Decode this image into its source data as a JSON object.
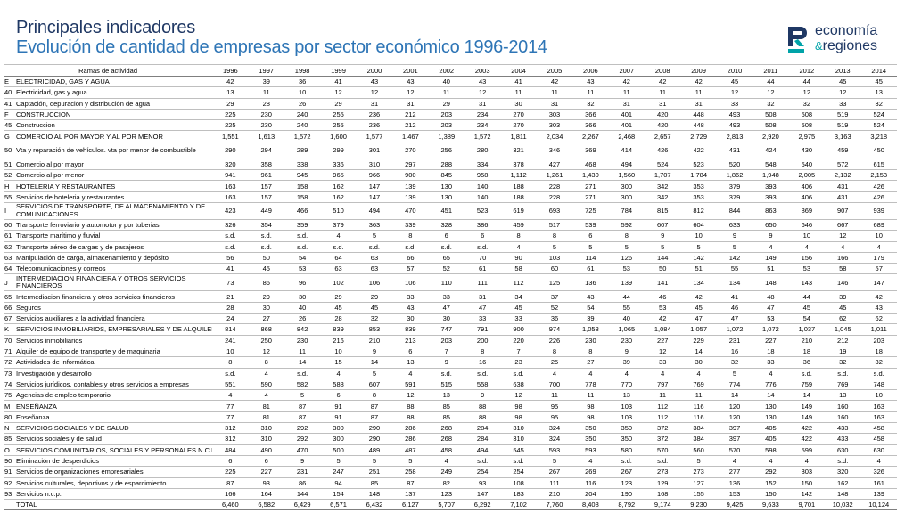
{
  "title": "Principales indicadores",
  "subtitle": "Evolución de cantidad de empresas por sector económico 1996-2014",
  "logo": {
    "line1": "economía",
    "amp": "&",
    "line2": "regiones",
    "accent_color": "#00a3a8",
    "brand_color": "#1f3864"
  },
  "table": {
    "header_label": "Ramas de actividad",
    "years": [
      "1996",
      "1997",
      "1998",
      "1999",
      "2000",
      "2001",
      "2002",
      "2003",
      "2004",
      "2005",
      "2006",
      "2007",
      "2008",
      "2009",
      "2010",
      "2011",
      "2012",
      "2013",
      "2014"
    ],
    "rows": [
      {
        "code": "E",
        "name": "ELECTRICIDAD, GAS Y AGUA",
        "values": [
          "42",
          "39",
          "36",
          "41",
          "43",
          "43",
          "40",
          "43",
          "41",
          "42",
          "43",
          "42",
          "42",
          "42",
          "45",
          "44",
          "44",
          "45",
          "45"
        ]
      },
      {
        "code": "40",
        "name": "Electricidad, gas y agua",
        "values": [
          "13",
          "11",
          "10",
          "12",
          "12",
          "12",
          "11",
          "12",
          "11",
          "11",
          "11",
          "11",
          "11",
          "11",
          "12",
          "12",
          "12",
          "12",
          "13"
        ]
      },
      {
        "code": "41",
        "name": "Captación, depuración y distribución de agua",
        "values": [
          "29",
          "28",
          "26",
          "29",
          "31",
          "31",
          "29",
          "31",
          "30",
          "31",
          "32",
          "31",
          "31",
          "31",
          "33",
          "32",
          "32",
          "33",
          "32"
        ]
      },
      {
        "code": "F",
        "name": "CONSTRUCCION",
        "values": [
          "225",
          "230",
          "240",
          "255",
          "236",
          "212",
          "203",
          "234",
          "270",
          "303",
          "366",
          "401",
          "420",
          "448",
          "493",
          "508",
          "508",
          "519",
          "524"
        ]
      },
      {
        "code": "45",
        "name": "Construccion",
        "values": [
          "225",
          "230",
          "240",
          "255",
          "236",
          "212",
          "203",
          "234",
          "270",
          "303",
          "366",
          "401",
          "420",
          "448",
          "493",
          "508",
          "508",
          "519",
          "524"
        ]
      },
      {
        "code": "G",
        "name": "COMERCIO AL POR MAYOR Y AL POR MENOR",
        "values": [
          "1,551",
          "1,613",
          "1,572",
          "1,600",
          "1,577",
          "1,467",
          "1,389",
          "1,572",
          "1,811",
          "2,034",
          "2,267",
          "2,468",
          "2,657",
          "2,729",
          "2,813",
          "2,920",
          "2,975",
          "3,163",
          "3,218"
        ]
      },
      {
        "code": "50",
        "name": "Vta y reparación de vehículos. vta por menor de combustible",
        "tall": true,
        "values": [
          "290",
          "294",
          "289",
          "299",
          "301",
          "270",
          "256",
          "280",
          "321",
          "346",
          "369",
          "414",
          "426",
          "422",
          "431",
          "424",
          "430",
          "459",
          "450"
        ]
      },
      {
        "code": "51",
        "name": "Comercio al por mayor",
        "values": [
          "320",
          "358",
          "338",
          "336",
          "310",
          "297",
          "288",
          "334",
          "378",
          "427",
          "468",
          "494",
          "524",
          "523",
          "520",
          "548",
          "540",
          "572",
          "615"
        ]
      },
      {
        "code": "52",
        "name": "Comercio al por menor",
        "values": [
          "941",
          "961",
          "945",
          "965",
          "966",
          "900",
          "845",
          "958",
          "1,112",
          "1,261",
          "1,430",
          "1,560",
          "1,707",
          "1,784",
          "1,862",
          "1,948",
          "2,005",
          "2,132",
          "2,153"
        ]
      },
      {
        "code": "H",
        "name": "HOTELERIA Y RESTAURANTES",
        "values": [
          "163",
          "157",
          "158",
          "162",
          "147",
          "139",
          "130",
          "140",
          "188",
          "228",
          "271",
          "300",
          "342",
          "353",
          "379",
          "393",
          "406",
          "431",
          "426"
        ]
      },
      {
        "code": "55",
        "name": "Servicios de hoteleria y restaurantes",
        "values": [
          "163",
          "157",
          "158",
          "162",
          "147",
          "139",
          "130",
          "140",
          "188",
          "228",
          "271",
          "300",
          "342",
          "353",
          "379",
          "393",
          "406",
          "431",
          "426"
        ]
      },
      {
        "code": "I",
        "name": "SERVICIOS DE TRANSPORTE, DE ALMACENAMIENTO Y DE COMUNICACIONES",
        "tall": true,
        "values": [
          "423",
          "449",
          "466",
          "510",
          "494",
          "470",
          "451",
          "523",
          "619",
          "693",
          "725",
          "784",
          "815",
          "812",
          "844",
          "863",
          "869",
          "907",
          "939"
        ]
      },
      {
        "code": "60",
        "name": "Transporte ferroviario y automotor y por tuberias",
        "values": [
          "326",
          "354",
          "359",
          "379",
          "363",
          "339",
          "328",
          "386",
          "459",
          "517",
          "539",
          "592",
          "607",
          "604",
          "633",
          "650",
          "646",
          "667",
          "689"
        ]
      },
      {
        "code": "61",
        "name": "Transporte marítimo y fluvial",
        "values": [
          "s.d.",
          "s.d.",
          "s.d.",
          "4",
          "5",
          "8",
          "6",
          "6",
          "8",
          "8",
          "6",
          "8",
          "9",
          "10",
          "9",
          "9",
          "10",
          "12",
          "10"
        ]
      },
      {
        "code": "62",
        "name": "Transporte aéreo de cargas y de pasajeros",
        "values": [
          "s.d.",
          "s.d.",
          "s.d.",
          "s.d.",
          "s.d.",
          "s.d.",
          "s.d.",
          "s.d.",
          "4",
          "5",
          "5",
          "5",
          "5",
          "5",
          "5",
          "4",
          "4",
          "4",
          "4"
        ]
      },
      {
        "code": "63",
        "name": "Manipulación de carga, almacenamiento y depósito",
        "values": [
          "56",
          "50",
          "54",
          "64",
          "63",
          "66",
          "65",
          "70",
          "90",
          "103",
          "114",
          "126",
          "144",
          "142",
          "142",
          "149",
          "156",
          "166",
          "179"
        ]
      },
      {
        "code": "64",
        "name": "Telecomunicaciones y correos",
        "values": [
          "41",
          "45",
          "53",
          "63",
          "63",
          "57",
          "52",
          "61",
          "58",
          "60",
          "61",
          "53",
          "50",
          "51",
          "55",
          "51",
          "53",
          "58",
          "57"
        ]
      },
      {
        "code": "J",
        "name": "INTERMEDIACION FINANCIERA Y OTROS SERVICIOS FINANCIEROS",
        "tall": true,
        "values": [
          "73",
          "86",
          "96",
          "102",
          "106",
          "106",
          "110",
          "111",
          "112",
          "125",
          "136",
          "139",
          "141",
          "134",
          "134",
          "148",
          "143",
          "146",
          "147"
        ]
      },
      {
        "code": "65",
        "name": "Intermediacion financiera y otros servicios financieros",
        "values": [
          "21",
          "29",
          "30",
          "29",
          "29",
          "33",
          "33",
          "31",
          "34",
          "37",
          "43",
          "44",
          "46",
          "42",
          "41",
          "48",
          "44",
          "39",
          "42"
        ]
      },
      {
        "code": "66",
        "name": "Seguros",
        "values": [
          "28",
          "30",
          "40",
          "45",
          "45",
          "43",
          "47",
          "47",
          "45",
          "52",
          "54",
          "55",
          "53",
          "45",
          "46",
          "47",
          "45",
          "45",
          "43"
        ]
      },
      {
        "code": "67",
        "name": "Servicios auxiliares a la actividad financiera",
        "values": [
          "24",
          "27",
          "26",
          "28",
          "32",
          "30",
          "30",
          "33",
          "33",
          "36",
          "39",
          "40",
          "42",
          "47",
          "47",
          "53",
          "54",
          "62",
          "62"
        ]
      },
      {
        "code": "K",
        "name": "SERVICIOS INMOBILIARIOS, EMPRESARIALES Y DE ALQUILER",
        "values": [
          "814",
          "868",
          "842",
          "839",
          "853",
          "839",
          "747",
          "791",
          "900",
          "974",
          "1,058",
          "1,065",
          "1,084",
          "1,057",
          "1,072",
          "1,072",
          "1,037",
          "1,045",
          "1,011"
        ]
      },
      {
        "code": "70",
        "name": "Servicios inmobiliarios",
        "values": [
          "241",
          "250",
          "230",
          "216",
          "210",
          "213",
          "203",
          "200",
          "220",
          "226",
          "230",
          "230",
          "227",
          "229",
          "231",
          "227",
          "210",
          "212",
          "203"
        ]
      },
      {
        "code": "71",
        "name": "Alquiler de equipo de transporte y de maquinaria",
        "values": [
          "10",
          "12",
          "11",
          "10",
          "9",
          "6",
          "7",
          "8",
          "7",
          "8",
          "8",
          "9",
          "12",
          "14",
          "16",
          "18",
          "18",
          "19",
          "18"
        ]
      },
      {
        "code": "72",
        "name": "Actividades de informática",
        "values": [
          "8",
          "8",
          "14",
          "15",
          "14",
          "13",
          "9",
          "16",
          "23",
          "25",
          "27",
          "39",
          "33",
          "30",
          "32",
          "33",
          "36",
          "32",
          "32"
        ]
      },
      {
        "code": "73",
        "name": "Investigación y desarrollo",
        "values": [
          "s.d.",
          "4",
          "s.d.",
          "4",
          "5",
          "4",
          "s.d.",
          "s.d.",
          "s.d.",
          "4",
          "4",
          "4",
          "4",
          "4",
          "5",
          "4",
          "s.d.",
          "s.d.",
          "s.d."
        ]
      },
      {
        "code": "74",
        "name": "Servicios jurídicos, contables y otros servicios a empresas",
        "values": [
          "551",
          "590",
          "582",
          "588",
          "607",
          "591",
          "515",
          "558",
          "638",
          "700",
          "778",
          "770",
          "797",
          "769",
          "774",
          "776",
          "759",
          "769",
          "748"
        ]
      },
      {
        "code": "75",
        "name": "Agencias de empleo temporario",
        "values": [
          "4",
          "4",
          "5",
          "6",
          "8",
          "12",
          "13",
          "9",
          "12",
          "11",
          "11",
          "13",
          "11",
          "11",
          "14",
          "14",
          "14",
          "13",
          "10"
        ]
      },
      {
        "code": "M",
        "name": "ENSEÑANZA",
        "values": [
          "77",
          "81",
          "87",
          "91",
          "87",
          "88",
          "85",
          "88",
          "98",
          "95",
          "98",
          "103",
          "112",
          "116",
          "120",
          "130",
          "149",
          "160",
          "163"
        ]
      },
      {
        "code": "80",
        "name": "Enseñanza",
        "values": [
          "77",
          "81",
          "87",
          "91",
          "87",
          "88",
          "85",
          "88",
          "98",
          "95",
          "98",
          "103",
          "112",
          "116",
          "120",
          "130",
          "149",
          "160",
          "163"
        ]
      },
      {
        "code": "N",
        "name": "SERVICIOS SOCIALES Y DE SALUD",
        "values": [
          "312",
          "310",
          "292",
          "300",
          "290",
          "286",
          "268",
          "284",
          "310",
          "324",
          "350",
          "350",
          "372",
          "384",
          "397",
          "405",
          "422",
          "433",
          "458"
        ]
      },
      {
        "code": "85",
        "name": "Servicios sociales y de salud",
        "values": [
          "312",
          "310",
          "292",
          "300",
          "290",
          "286",
          "268",
          "284",
          "310",
          "324",
          "350",
          "350",
          "372",
          "384",
          "397",
          "405",
          "422",
          "433",
          "458"
        ]
      },
      {
        "code": "O",
        "name": "SERVICIOS COMUNITARIOS, SOCIALES Y PERSONALES N.C.P.",
        "values": [
          "484",
          "490",
          "470",
          "500",
          "489",
          "487",
          "458",
          "494",
          "545",
          "593",
          "593",
          "580",
          "570",
          "560",
          "570",
          "598",
          "599",
          "630",
          "630"
        ]
      },
      {
        "code": "90",
        "name": "Eliminación de desperdicios",
        "values": [
          "6",
          "6",
          "9",
          "5",
          "5",
          "5",
          "4",
          "s.d.",
          "s.d.",
          "5",
          "4",
          "s.d.",
          "s.d.",
          "5",
          "4",
          "4",
          "4",
          "s.d.",
          "4"
        ]
      },
      {
        "code": "91",
        "name": "Servicios de organizaciones empresariales",
        "values": [
          "225",
          "227",
          "231",
          "247",
          "251",
          "258",
          "249",
          "254",
          "254",
          "267",
          "269",
          "267",
          "273",
          "273",
          "277",
          "292",
          "303",
          "320",
          "326"
        ]
      },
      {
        "code": "92",
        "name": "Servicios culturales, deportivos y de esparcimiento",
        "values": [
          "87",
          "93",
          "86",
          "94",
          "85",
          "87",
          "82",
          "93",
          "108",
          "111",
          "116",
          "123",
          "129",
          "127",
          "136",
          "152",
          "150",
          "162",
          "161"
        ]
      },
      {
        "code": "93",
        "name": "Servicios n.c.p.",
        "values": [
          "166",
          "164",
          "144",
          "154",
          "148",
          "137",
          "123",
          "147",
          "183",
          "210",
          "204",
          "190",
          "168",
          "155",
          "153",
          "150",
          "142",
          "148",
          "139"
        ]
      },
      {
        "code": "",
        "name": "TOTAL",
        "total": true,
        "values": [
          "6,460",
          "6,582",
          "6,429",
          "6,571",
          "6,432",
          "6,127",
          "5,707",
          "6,292",
          "7,102",
          "7,760",
          "8,408",
          "8,792",
          "9,174",
          "9,230",
          "9,425",
          "9,633",
          "9,701",
          "10,032",
          "10,124"
        ]
      }
    ]
  }
}
